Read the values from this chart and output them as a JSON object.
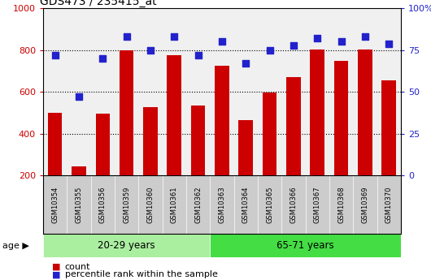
{
  "title": "GDS473 / 235415_at",
  "samples": [
    "GSM10354",
    "GSM10355",
    "GSM10356",
    "GSM10359",
    "GSM10360",
    "GSM10361",
    "GSM10362",
    "GSM10363",
    "GSM10364",
    "GSM10365",
    "GSM10366",
    "GSM10367",
    "GSM10368",
    "GSM10369",
    "GSM10370"
  ],
  "counts": [
    500,
    245,
    497,
    800,
    527,
    775,
    535,
    727,
    463,
    595,
    672,
    803,
    748,
    803,
    655
  ],
  "percentiles": [
    72,
    47,
    70,
    83,
    75,
    83,
    72,
    80,
    67,
    75,
    78,
    82,
    80,
    83,
    79
  ],
  "groups": [
    {
      "label": "20-29 years",
      "start": 0,
      "end": 7,
      "color": "#aaeea0"
    },
    {
      "label": "65-71 years",
      "start": 7,
      "end": 15,
      "color": "#44dd44"
    }
  ],
  "ylim_left": [
    200,
    1000
  ],
  "ylim_right": [
    0,
    100
  ],
  "left_ticks": [
    200,
    400,
    600,
    800,
    1000
  ],
  "right_ticks": [
    0,
    25,
    50,
    75,
    100
  ],
  "right_tick_labels": [
    "0",
    "25",
    "50",
    "75",
    "100%"
  ],
  "bar_color": "#cc0000",
  "scatter_color": "#2222cc",
  "tick_color_left": "#cc0000",
  "tick_color_right": "#2222cc",
  "grid_color": "black",
  "plot_bg": "#f0f0f0",
  "xtick_bg": "#cccccc",
  "age_label": "age",
  "legend_count": "count",
  "legend_percentile": "percentile rank within the sample",
  "bar_width": 0.6,
  "scatter_size": 28
}
